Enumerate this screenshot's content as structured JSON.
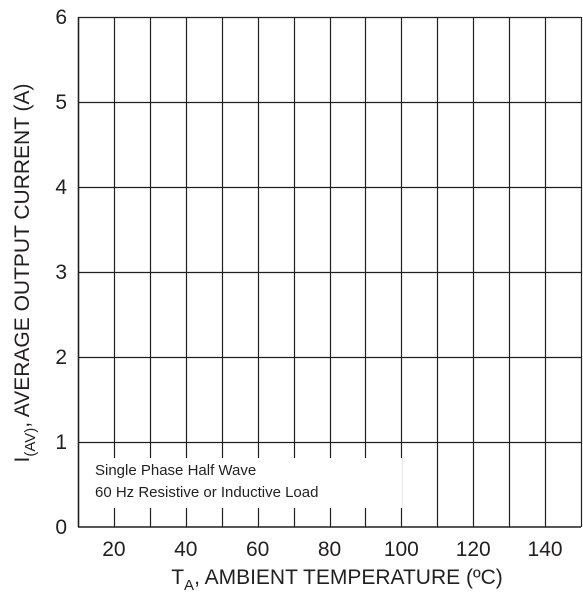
{
  "chart_data": {
    "type": "line",
    "title": "",
    "xlabel": {
      "main": "T",
      "sub": "A",
      "rest": ", AMBIENT TEMPERATURE (ºC)"
    },
    "ylabel": {
      "main": "I",
      "sub": "(AV)",
      "rest": ", AVERAGE OUTPUT CURRENT (A)"
    },
    "xlim": [
      10,
      150
    ],
    "ylim": [
      0,
      6
    ],
    "x_gridlines": [
      10,
      20,
      30,
      40,
      50,
      60,
      70,
      80,
      90,
      100,
      110,
      120,
      130,
      140,
      150
    ],
    "y_gridlines": [
      1,
      2,
      3,
      4,
      5,
      6
    ],
    "x_ticks": [
      20,
      40,
      60,
      80,
      100,
      120,
      140
    ],
    "x_tick_labels": [
      "20",
      "40",
      "60",
      "80",
      "100",
      "120",
      "140"
    ],
    "y_ticks": [
      0,
      1,
      2,
      3,
      4,
      5,
      6
    ],
    "y_tick_labels": [
      "0",
      "1",
      "2",
      "3",
      "4",
      "5",
      "6"
    ],
    "grid": true,
    "series": [],
    "annotations": [
      "Single Phase Half Wave",
      "60 Hz Resistive or Inductive Load"
    ],
    "colors": {
      "grid": "#231f20",
      "text": "#231f20",
      "background": "#ffffff"
    }
  }
}
